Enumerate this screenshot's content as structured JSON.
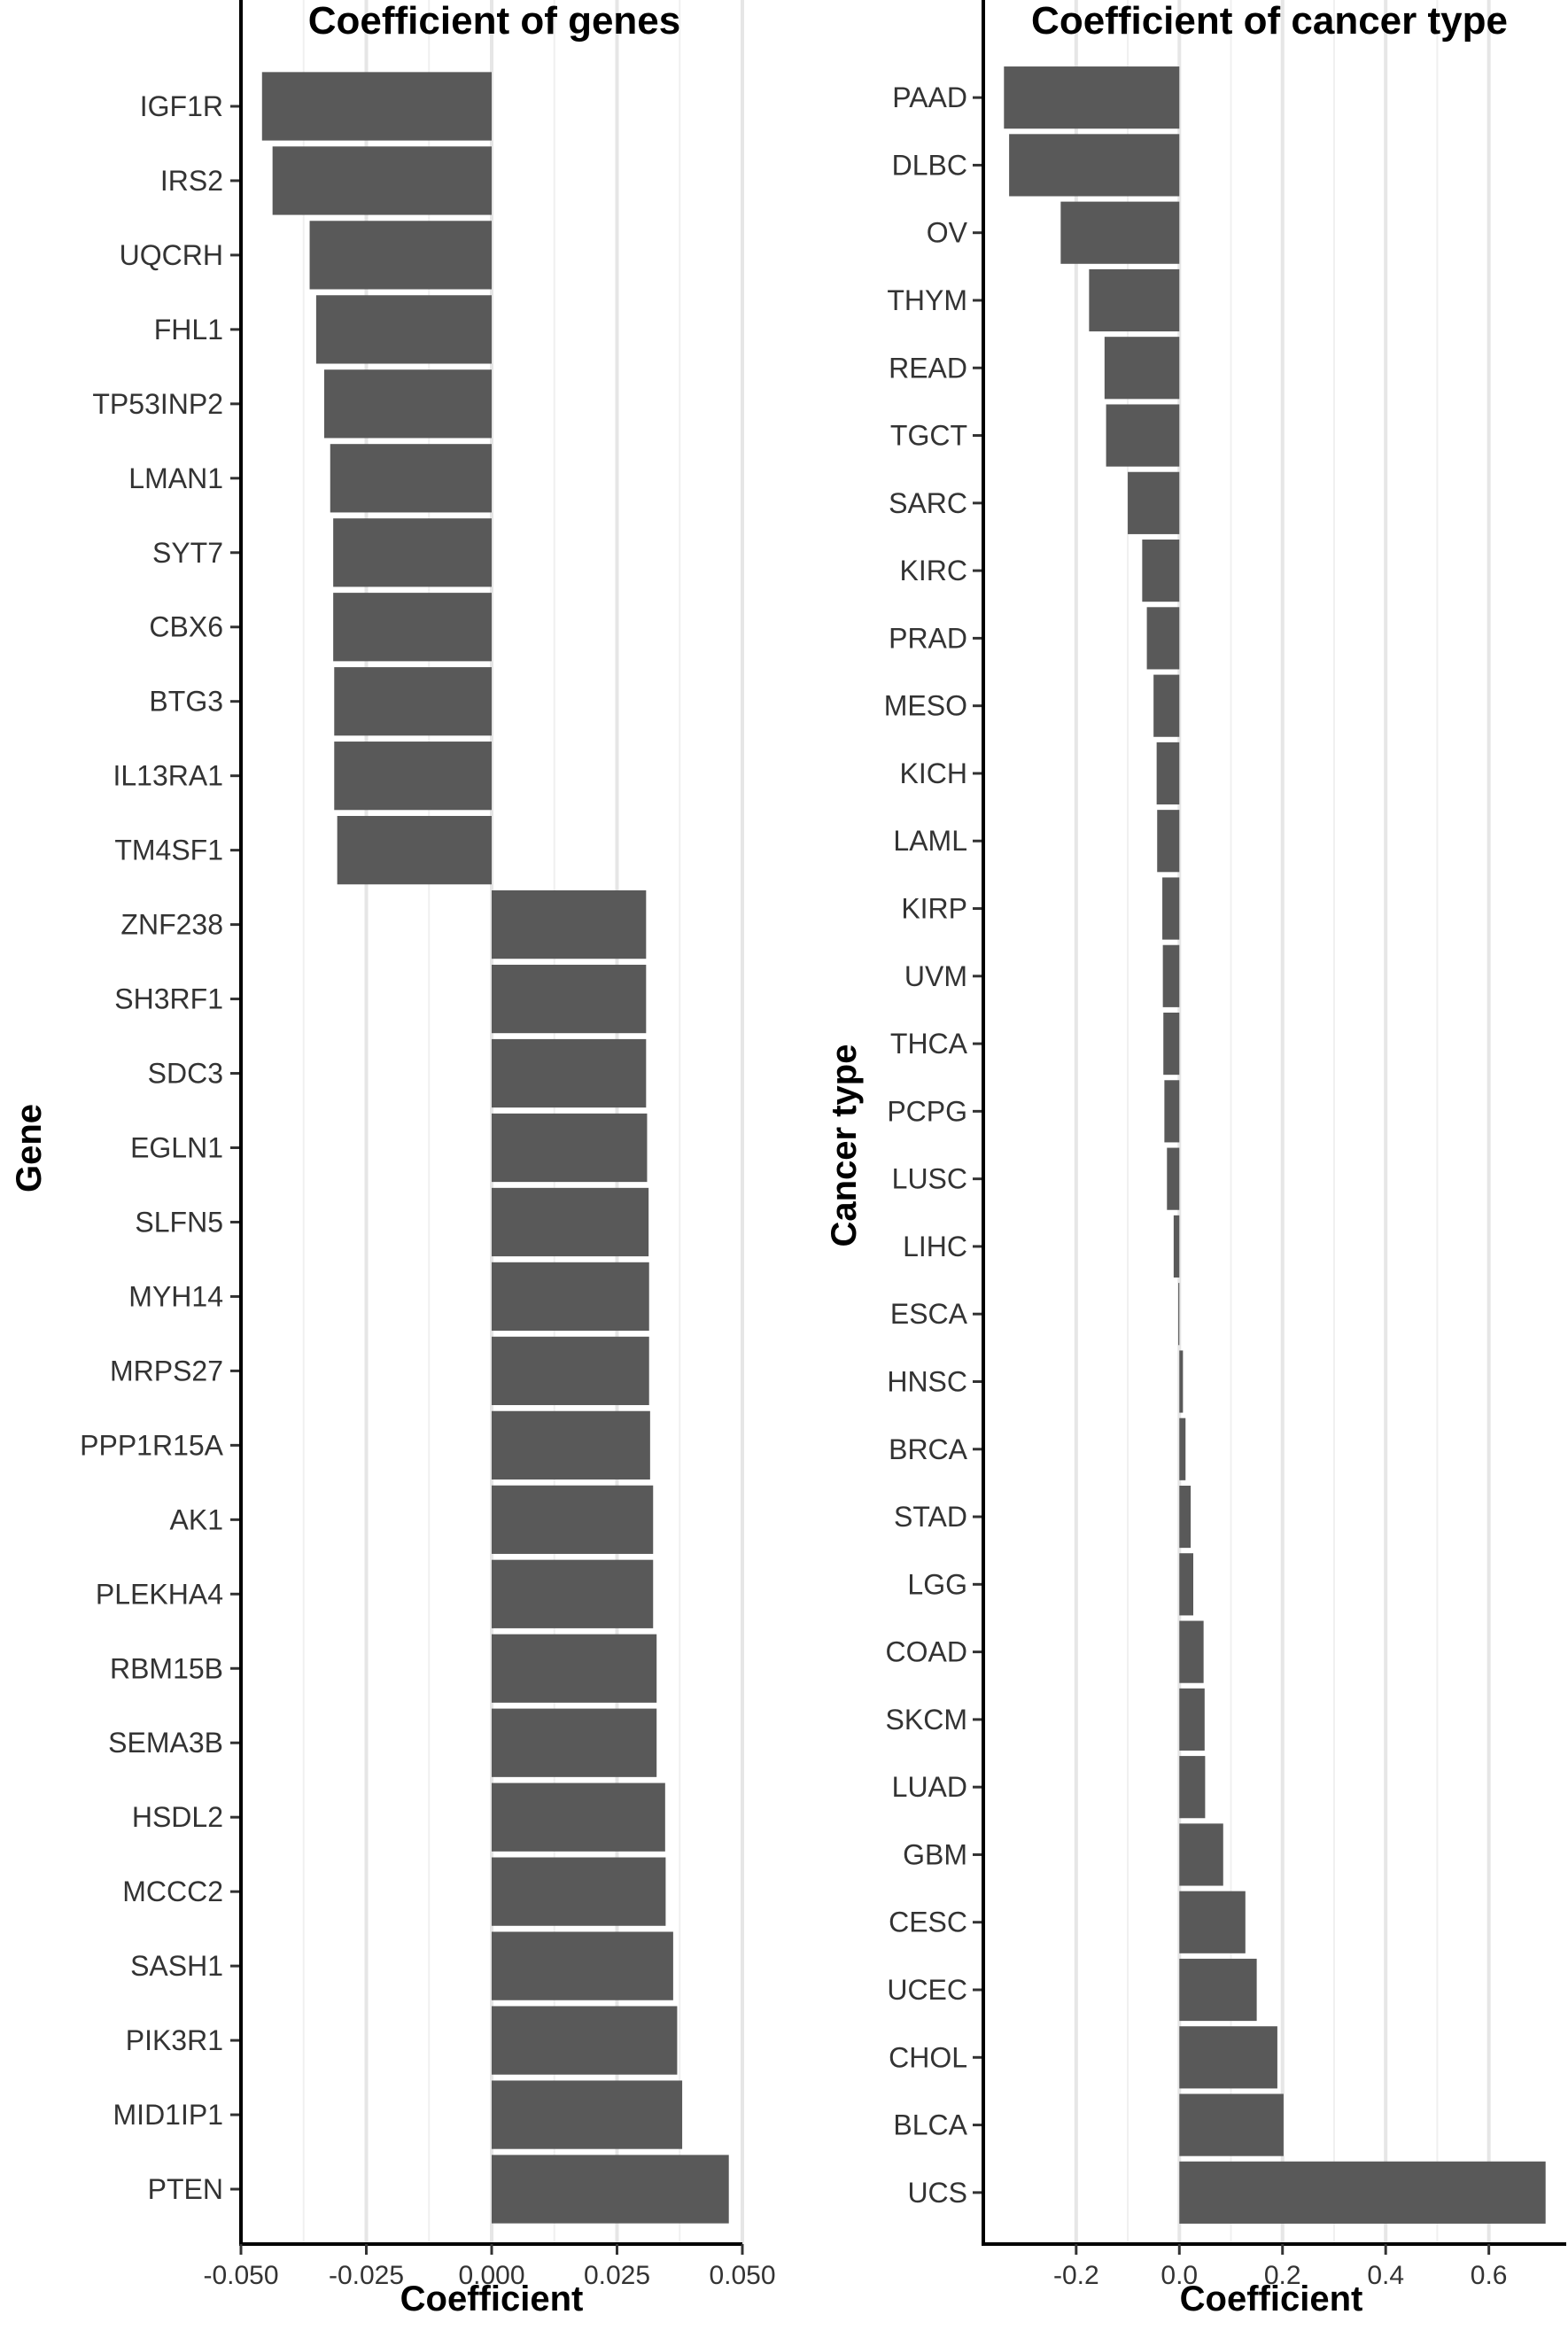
{
  "chart_data": [
    {
      "type": "bar",
      "orientation": "horizontal",
      "title": "Coefficient of genes",
      "xlabel": "Coefficient",
      "ylabel": "Gene",
      "xlim": [
        -0.05,
        0.05
      ],
      "xticks": [
        -0.05,
        -0.025,
        0.0,
        0.025,
        0.05
      ],
      "xtick_labels": [
        "-0.050",
        "-0.025",
        "0.000",
        "0.025",
        "0.050"
      ],
      "grid": true,
      "bar_color": "#595959",
      "categories": [
        "IGF1R",
        "IRS2",
        "UQCRH",
        "FHL1",
        "TP53INP2",
        "LMAN1",
        "SYT7",
        "CBX6",
        "BTG3",
        "IL13RA1",
        "TM4SF1",
        "ZNF238",
        "SH3RF1",
        "SDC3",
        "EGLN1",
        "SLFN5",
        "MYH14",
        "MRPS27",
        "PPP1R15A",
        "AK1",
        "PLEKHA4",
        "RBM15B",
        "SEMA3B",
        "HSDL2",
        "MCCC2",
        "SASH1",
        "PIK3R1",
        "MID1IP1",
        "PTEN"
      ],
      "values": [
        -0.0458,
        -0.0437,
        -0.0363,
        -0.035,
        -0.0334,
        -0.0322,
        -0.0316,
        -0.0316,
        -0.0314,
        -0.0314,
        -0.0308,
        0.0308,
        0.0308,
        0.0308,
        0.031,
        0.0313,
        0.0314,
        0.0314,
        0.0316,
        0.0322,
        0.0322,
        0.0329,
        0.0329,
        0.0346,
        0.0347,
        0.0362,
        0.037,
        0.038,
        0.0473
      ]
    },
    {
      "type": "bar",
      "orientation": "horizontal",
      "title": "Coefficient of cancer type",
      "xlabel": "Coefficient",
      "ylabel": "Cancer type",
      "xlim": [
        -0.38,
        0.75
      ],
      "xticks": [
        -0.2,
        0.0,
        0.2,
        0.4,
        0.6
      ],
      "xtick_labels": [
        "-0.2",
        "0.0",
        "0.2",
        "0.4",
        "0.6"
      ],
      "grid": true,
      "bar_color": "#595959",
      "categories": [
        "PAAD",
        "DLBC",
        "OV",
        "THYM",
        "READ",
        "TGCT",
        "SARC",
        "KIRC",
        "PRAD",
        "MESO",
        "KICH",
        "LAML",
        "KIRP",
        "UVM",
        "THCA",
        "PCPG",
        "LUSC",
        "LIHC",
        "ESCA",
        "HNSC",
        "BRCA",
        "STAD",
        "LGG",
        "COAD",
        "SKCM",
        "LUAD",
        "GBM",
        "CESC",
        "UCEC",
        "CHOL",
        "BLCA",
        "UCS"
      ],
      "values": [
        -0.34,
        -0.33,
        -0.23,
        -0.175,
        -0.145,
        -0.142,
        -0.1,
        -0.072,
        -0.063,
        -0.05,
        -0.044,
        -0.043,
        -0.033,
        -0.032,
        -0.031,
        -0.029,
        -0.024,
        -0.011,
        -0.002,
        0.007,
        0.012,
        0.022,
        0.027,
        0.047,
        0.049,
        0.05,
        0.085,
        0.128,
        0.15,
        0.19,
        0.202,
        0.71
      ]
    }
  ]
}
